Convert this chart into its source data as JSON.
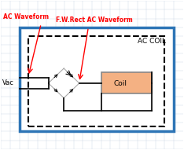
{
  "bg_color": "#ffffff",
  "outer_box_color": "#2e75b6",
  "dashed_box_color": "#000000",
  "coil_fill": "#f4b183",
  "label_ac_waveform": "AC Waveform",
  "label_fw_rect": "F.W.Rect AC Waveform",
  "label_ac_coil": "AC COIL",
  "label_coil": "Coil",
  "label_vac": "Vac",
  "arrow_color": "#ff0000",
  "text_color_red": "#ff0000",
  "text_color_black": "#000000",
  "grid_color": "#d0d0d0"
}
